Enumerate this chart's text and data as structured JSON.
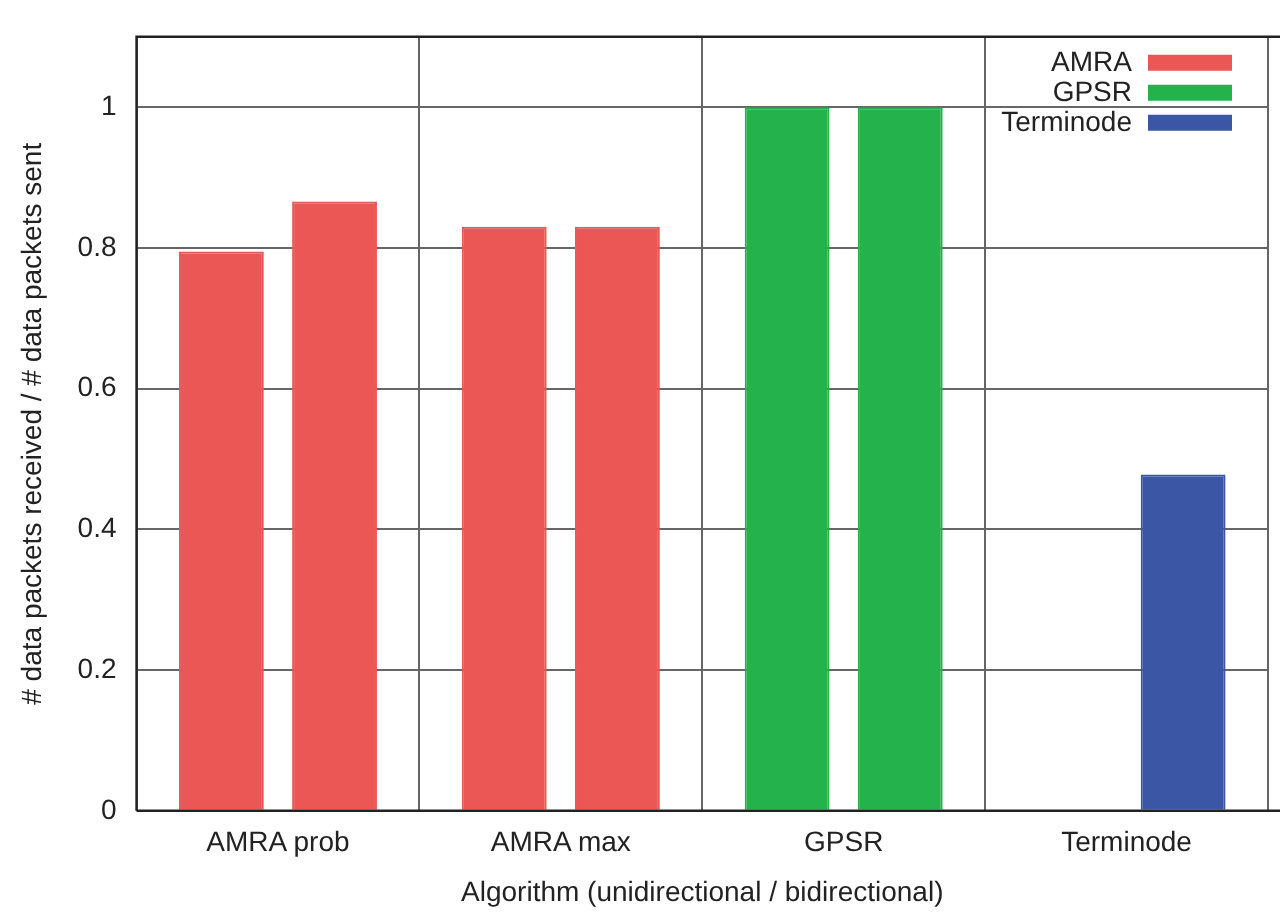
{
  "chart_data": {
    "type": "bar",
    "xlabel": "Algorithm (unidirectional / bidirectional)",
    "ylabel": "# data packets received / # data packets sent",
    "categories": [
      "AMRA prob",
      "AMRA max",
      "GPSR",
      "Terminode"
    ],
    "series": [
      {
        "name": "AMRA",
        "color": "#eb5754",
        "values": [
          0.795,
          0.83,
          null,
          null
        ]
      },
      {
        "color": "#eb5754",
        "values": [
          0.866,
          0.83,
          null,
          null
        ]
      },
      {
        "name": "GPSR",
        "color": "#24b24c",
        "values": [
          null,
          null,
          1,
          null
        ]
      },
      {
        "color": "#24b24c",
        "values": [
          null,
          null,
          1,
          null
        ]
      },
      {
        "name": "Terminode",
        "color": "#3a56a5",
        "values": [
          null,
          null,
          null,
          0
        ]
      },
      {
        "color": "#3a56a5",
        "values": [
          null,
          null,
          null,
          0.478
        ]
      }
    ],
    "ylim": [
      0,
      1.1
    ],
    "yticks": [
      0,
      0.2,
      0.4,
      0.6,
      0.8,
      1
    ],
    "grid": true,
    "legend": "top right"
  }
}
